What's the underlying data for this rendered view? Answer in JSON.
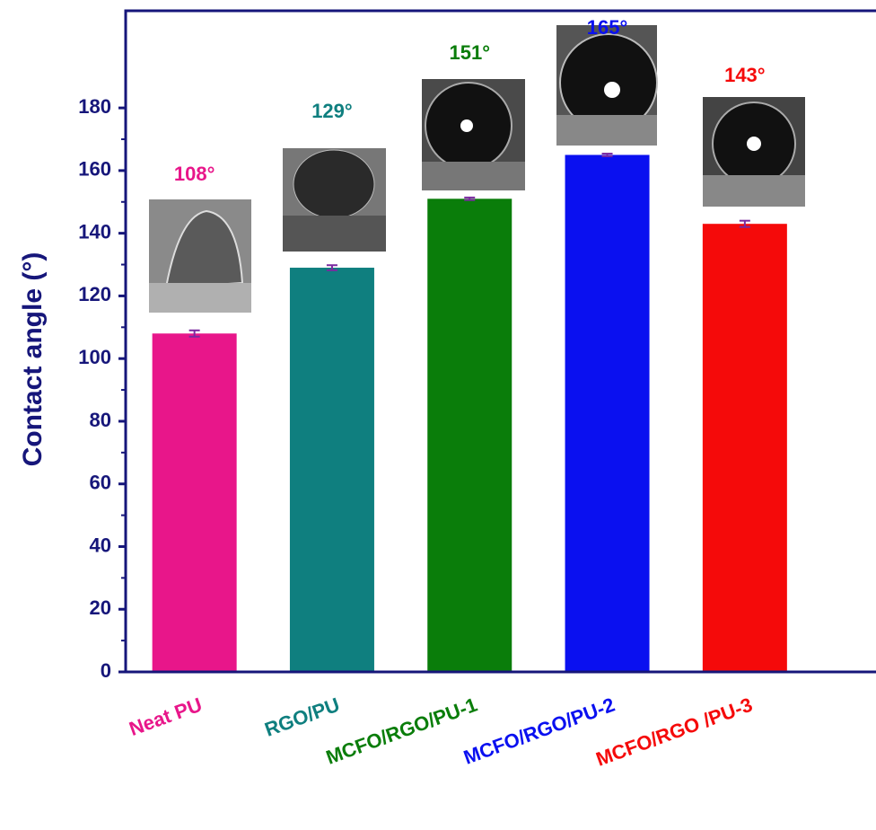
{
  "chart_data": {
    "type": "bar",
    "y_label": "Contact angle (°)",
    "categories": [
      "Neat PU",
      "RGO/PU",
      "MCFO/RGO/PU-1",
      "MCFO/RGO/PU-2",
      "MCFO/RGO /PU-3"
    ],
    "values": [
      108,
      129,
      151,
      165,
      143
    ],
    "value_labels": [
      "108°",
      "129°",
      "151°",
      "165°",
      "143°"
    ],
    "errors": [
      1,
      0.8,
      0.4,
      0.4,
      1
    ],
    "colors": [
      "#e8168a",
      "#0f7f7f",
      "#0a7d0a",
      "#0a10f0",
      "#f50a0a"
    ],
    "ylim": [
      0,
      211
    ],
    "yticks": [
      0,
      20,
      40,
      60,
      80,
      100,
      120,
      140,
      160,
      180
    ],
    "error_color": "#7a2aa0"
  }
}
